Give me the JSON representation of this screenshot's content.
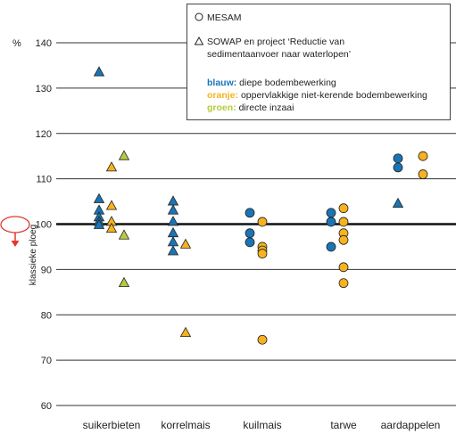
{
  "chart_data": {
    "type": "scatter",
    "ylabel": "klassieke ploeg",
    "yunit": "%",
    "ylim": [
      60,
      140
    ],
    "yticks": [
      60,
      70,
      80,
      90,
      100,
      110,
      120,
      130,
      140
    ],
    "reference_line": 100,
    "grid": true,
    "categories": [
      "suikerbieten",
      "korrelmais",
      "kuilmais",
      "tarwe",
      "aardappelen"
    ],
    "legend": {
      "mesam_label": "MESAM",
      "sowap_label": "SOWAP en project ‘Reductie van sedimentaanvoer naar waterlopen’",
      "sowap_line1": "SOWAP en project ‘Reductie van",
      "sowap_line2": "sedimentaanvoer naar waterlopen’",
      "blue_key": "blauw:",
      "blue_text": "diepe bodembewerking",
      "orange_key": "oranje:",
      "orange_text": "oppervlakkige niet-kerende bodembewerking",
      "green_key": "groen:",
      "green_text": "directe inzaai"
    },
    "colors": {
      "blauw": "#1a75b5",
      "oranje": "#f6b21f",
      "groen": "#b7cc3c",
      "reference": "#111111",
      "marker_arrow": "#e03a2d"
    },
    "series": [
      {
        "name": "blauw",
        "marker": "triangle",
        "points": [
          {
            "category": "suikerbieten",
            "y": 133.5
          },
          {
            "category": "suikerbieten",
            "y": 105.5
          },
          {
            "category": "suikerbieten",
            "y": 103.0
          },
          {
            "category": "suikerbieten",
            "y": 101.5
          },
          {
            "category": "suikerbieten",
            "y": 100.5
          },
          {
            "category": "suikerbieten",
            "y": 99.8
          },
          {
            "category": "korrelmais",
            "y": 105.0
          },
          {
            "category": "korrelmais",
            "y": 103.0
          },
          {
            "category": "korrelmais",
            "y": 100.5
          },
          {
            "category": "korrelmais",
            "y": 98.0
          },
          {
            "category": "korrelmais",
            "y": 96.0
          },
          {
            "category": "korrelmais",
            "y": 94.0
          },
          {
            "category": "aardappelen",
            "y": 104.5
          }
        ]
      },
      {
        "name": "oranje",
        "marker": "triangle",
        "points": [
          {
            "category": "suikerbieten",
            "y": 112.5
          },
          {
            "category": "suikerbieten",
            "y": 104.0
          },
          {
            "category": "suikerbieten",
            "y": 100.5
          },
          {
            "category": "suikerbieten",
            "y": 99.0
          },
          {
            "category": "korrelmais",
            "y": 95.5
          },
          {
            "category": "korrelmais",
            "y": 76.0
          }
        ]
      },
      {
        "name": "groen",
        "marker": "triangle",
        "points": [
          {
            "category": "suikerbieten",
            "y": 115.0
          },
          {
            "category": "suikerbieten",
            "y": 97.5
          },
          {
            "category": "suikerbieten",
            "y": 87.0
          }
        ]
      },
      {
        "name": "blauw",
        "marker": "circle",
        "points": [
          {
            "category": "kuilmais",
            "y": 102.5
          },
          {
            "category": "kuilmais",
            "y": 98.0
          },
          {
            "category": "kuilmais",
            "y": 96.0
          },
          {
            "category": "tarwe",
            "y": 102.5
          },
          {
            "category": "tarwe",
            "y": 100.5
          },
          {
            "category": "tarwe",
            "y": 95.0
          },
          {
            "category": "aardappelen",
            "y": 114.5
          },
          {
            "category": "aardappelen",
            "y": 112.5
          }
        ]
      },
      {
        "name": "oranje",
        "marker": "circle",
        "points": [
          {
            "category": "kuilmais",
            "y": 100.5
          },
          {
            "category": "kuilmais",
            "y": 95.0
          },
          {
            "category": "kuilmais",
            "y": 94.2
          },
          {
            "category": "kuilmais",
            "y": 93.5
          },
          {
            "category": "kuilmais",
            "y": 74.5
          },
          {
            "category": "tarwe",
            "y": 103.5
          },
          {
            "category": "tarwe",
            "y": 100.5
          },
          {
            "category": "tarwe",
            "y": 98.0
          },
          {
            "category": "tarwe",
            "y": 96.5
          },
          {
            "category": "tarwe",
            "y": 90.5
          },
          {
            "category": "tarwe",
            "y": 87.0
          },
          {
            "category": "aardappelen",
            "y": 115.0
          },
          {
            "category": "aardappelen",
            "y": 111.0
          }
        ]
      }
    ]
  }
}
